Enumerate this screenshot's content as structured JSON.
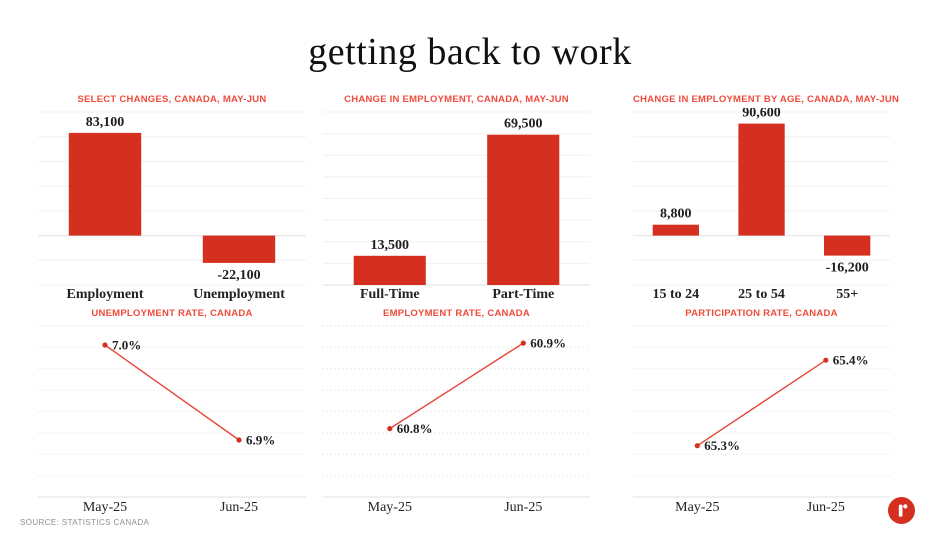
{
  "page": {
    "title": "getting back to work",
    "source": "SOURCE: STATISTICS CANADA",
    "logo_icon": "r-mark"
  },
  "colors": {
    "bar": "#d5301f",
    "line": "#e8473a",
    "point": "#d5301f",
    "subtitle": "#ef4b3b",
    "grid": "#f0f0f0",
    "axis": "#e2e2e2",
    "label": "#1d1d1d"
  },
  "chart_data": [
    {
      "id": "select-changes",
      "type": "bar",
      "title": "SELECT CHANGES, CANADA, MAY-JUN",
      "categories": [
        "Employment",
        "Unemployment"
      ],
      "values": [
        83100,
        -22100
      ],
      "labels": [
        "83,100",
        "-22,100"
      ],
      "ylim": [
        -40000,
        100000
      ],
      "grid_step": 20000,
      "legend": "none",
      "grid": "on"
    },
    {
      "id": "change-in-employment",
      "type": "bar",
      "title": "CHANGE IN EMPLOYMENT, CANADA, MAY-JUN",
      "categories": [
        "Full-Time",
        "Part-Time"
      ],
      "values": [
        13500,
        69500
      ],
      "labels": [
        "13,500",
        "69,500"
      ],
      "ylim": [
        0,
        80000
      ],
      "grid_step": 10000,
      "legend": "none",
      "grid": "on"
    },
    {
      "id": "change-in-employment-by-age",
      "type": "bar",
      "title": "CHANGE IN EMPLOYMENT BY AGE, CANADA, MAY-JUN",
      "categories": [
        "15 to 24",
        "25 to 54",
        "55+"
      ],
      "values": [
        8800,
        90600,
        -16200
      ],
      "labels": [
        "8,800",
        "90,600",
        "-16,200"
      ],
      "ylim": [
        -40000,
        100000
      ],
      "grid_step": 20000,
      "legend": "none",
      "grid": "on"
    },
    {
      "id": "unemployment-rate",
      "type": "line",
      "title": "UNEMPLOYMENT RATE, CANADA",
      "categories": [
        "May-25",
        "Jun-25"
      ],
      "values": [
        7.0,
        6.9
      ],
      "labels": [
        "7.0%",
        "6.9%"
      ],
      "ylim": [
        6.84,
        7.02
      ],
      "grid_step": 0.0225,
      "legend": "none",
      "grid": "dotted"
    },
    {
      "id": "employment-rate",
      "type": "line",
      "title": "EMPLOYMENT RATE, CANADA",
      "categories": [
        "May-25",
        "Jun-25"
      ],
      "values": [
        60.8,
        60.9
      ],
      "labels": [
        "60.8%",
        "60.9%"
      ],
      "ylim": [
        60.72,
        60.92
      ],
      "grid_step": 0.025,
      "legend": "none",
      "grid": "dotted"
    },
    {
      "id": "participation-rate",
      "type": "line",
      "title": "PARTICIPATION RATE, CANADA",
      "categories": [
        "May-25",
        "Jun-25"
      ],
      "values": [
        65.3,
        65.4
      ],
      "labels": [
        "65.3%",
        "65.4%"
      ],
      "ylim": [
        65.24,
        65.44
      ],
      "grid_step": 0.025,
      "legend": "none",
      "grid": "dotted"
    }
  ]
}
